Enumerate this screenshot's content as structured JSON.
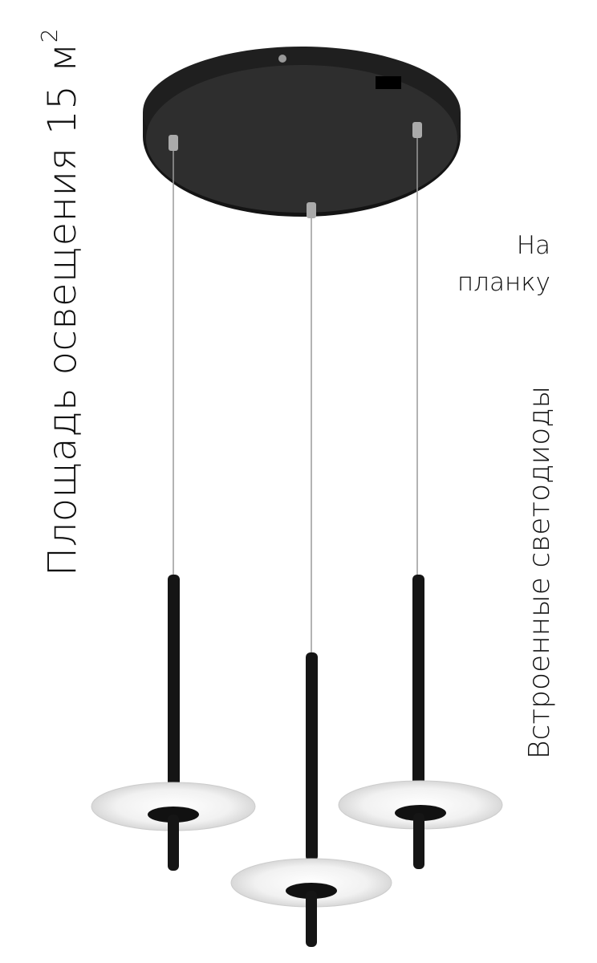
{
  "lighting_area": {
    "label": "Площадь освещения 15 м",
    "superscript": "2"
  },
  "mounting": {
    "line1": "На",
    "line2": "планку"
  },
  "light_source": {
    "label": "Встроенные светодиоды"
  },
  "colors": {
    "canopy": "#2a2a2a",
    "rod": "#151515",
    "disc": "#eeeeee",
    "cable": "#9a9a9a"
  }
}
